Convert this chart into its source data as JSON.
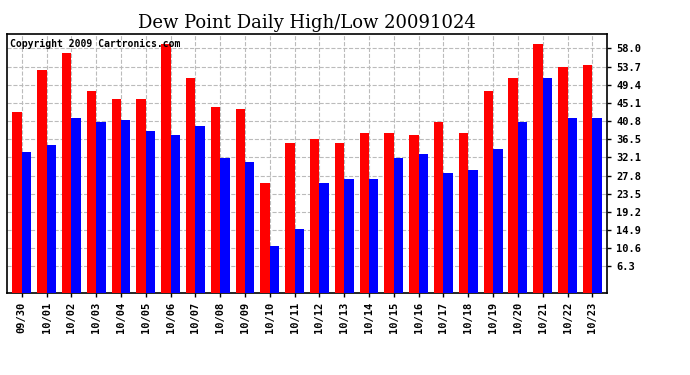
{
  "title": "Dew Point Daily High/Low 20091024",
  "copyright": "Copyright 2009 Cartronics.com",
  "categories": [
    "09/30",
    "10/01",
    "10/02",
    "10/03",
    "10/04",
    "10/05",
    "10/06",
    "10/07",
    "10/08",
    "10/09",
    "10/10",
    "10/11",
    "10/12",
    "10/13",
    "10/14",
    "10/15",
    "10/16",
    "10/17",
    "10/18",
    "10/19",
    "10/20",
    "10/21",
    "10/22",
    "10/23"
  ],
  "highs": [
    43.0,
    53.0,
    57.0,
    48.0,
    46.0,
    46.0,
    59.0,
    51.0,
    44.0,
    43.5,
    26.0,
    35.5,
    36.5,
    35.5,
    38.0,
    38.0,
    37.5,
    40.5,
    38.0,
    48.0,
    51.0,
    59.0,
    53.5,
    54.0
  ],
  "lows": [
    33.5,
    35.0,
    41.5,
    40.5,
    41.0,
    38.5,
    37.5,
    39.5,
    32.0,
    31.0,
    11.0,
    15.0,
    26.0,
    27.0,
    27.0,
    32.0,
    33.0,
    28.5,
    29.0,
    34.0,
    40.5,
    51.0,
    41.5,
    41.5
  ],
  "high_color": "#ff0000",
  "low_color": "#0000ff",
  "bg_color": "#ffffff",
  "plot_bg_color": "#ffffff",
  "grid_color": "#bbbbbb",
  "yticks": [
    6.3,
    10.6,
    14.9,
    19.2,
    23.5,
    27.8,
    32.1,
    36.5,
    40.8,
    45.1,
    49.4,
    53.7,
    58.0
  ],
  "ymin": 6.3,
  "ymax": 61.5,
  "bar_width": 0.38,
  "title_fontsize": 13,
  "tick_fontsize": 7.5,
  "copyright_fontsize": 7
}
